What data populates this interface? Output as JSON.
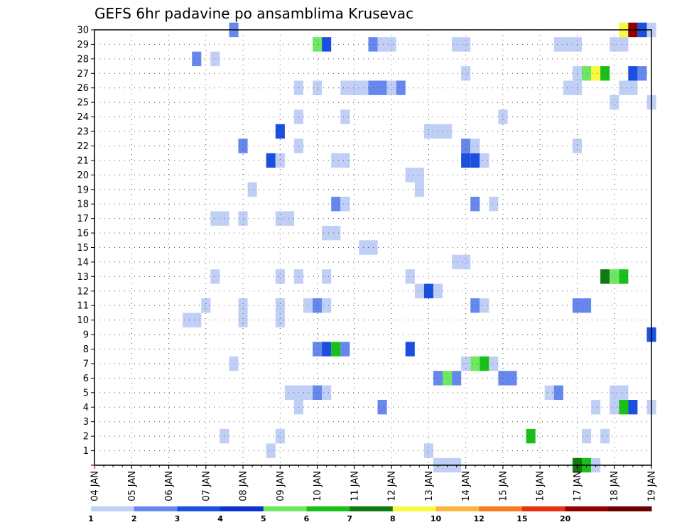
{
  "chart_data": {
    "type": "heatmap",
    "title": "GEFS 6hr padavine po ansamblima Krusevac",
    "x_tick_labels": [
      "04 JAN",
      "05 JAN",
      "06 JAN",
      "07 JAN",
      "08 JAN",
      "09 JAN",
      "10 JAN",
      "11 JAN",
      "12 JAN",
      "13 JAN",
      "14 JAN",
      "15 JAN",
      "16 JAN",
      "17 JAN",
      "18 JAN",
      "19 JAN"
    ],
    "y_tick_labels": [
      "1",
      "2",
      "3",
      "4",
      "5",
      "6",
      "7",
      "8",
      "9",
      "10",
      "11",
      "12",
      "13",
      "14",
      "15",
      "16",
      "17",
      "18",
      "19",
      "20",
      "21",
      "22",
      "23",
      "24",
      "25",
      "26",
      "27",
      "28",
      "29",
      "30"
    ],
    "xlim": [
      0,
      15
    ],
    "ylim": [
      0,
      30
    ],
    "grid": true,
    "legend": {
      "placement": "bottom",
      "labels": [
        "1",
        "2",
        "3",
        "4",
        "5",
        "6",
        "7",
        "8",
        "10",
        "12",
        "15",
        "20"
      ],
      "colors": [
        "#c0cff5",
        "#6688ee",
        "#1a4fe0",
        "#0c33d0",
        "#6ee860",
        "#18c018",
        "#107a10",
        "#f8f840",
        "#fcb640",
        "#fa7a20",
        "#e63010",
        "#900000",
        "#6a0000"
      ]
    },
    "cells": [
      [
        9.25,
        0,
        0
      ],
      [
        9.5,
        0,
        0
      ],
      [
        9.75,
        0,
        0
      ],
      [
        13,
        0,
        6
      ],
      [
        13.25,
        0,
        5
      ],
      [
        13.5,
        0,
        0
      ],
      [
        4.75,
        1,
        0
      ],
      [
        9,
        1,
        0
      ],
      [
        3.5,
        2,
        0
      ],
      [
        5,
        2,
        0
      ],
      [
        11.75,
        2,
        5
      ],
      [
        13.25,
        2,
        0
      ],
      [
        13.75,
        2,
        0
      ],
      [
        5.5,
        4,
        0
      ],
      [
        7.75,
        4,
        1
      ],
      [
        13.5,
        4,
        0
      ],
      [
        14,
        4,
        0
      ],
      [
        14.25,
        4,
        5
      ],
      [
        14.5,
        4,
        2
      ],
      [
        15,
        4,
        0
      ],
      [
        5.25,
        5,
        0
      ],
      [
        5.5,
        5,
        0
      ],
      [
        5.75,
        5,
        0
      ],
      [
        6,
        5,
        1
      ],
      [
        6.25,
        5,
        0
      ],
      [
        12.25,
        5,
        0
      ],
      [
        12.5,
        5,
        1
      ],
      [
        14,
        5,
        0
      ],
      [
        14.25,
        5,
        0
      ],
      [
        9.25,
        6,
        1
      ],
      [
        9.5,
        6,
        4
      ],
      [
        9.75,
        6,
        1
      ],
      [
        11,
        6,
        1
      ],
      [
        11.25,
        6,
        1
      ],
      [
        3.75,
        7,
        0
      ],
      [
        10,
        7,
        0
      ],
      [
        10.25,
        7,
        4
      ],
      [
        10.5,
        7,
        5
      ],
      [
        10.75,
        7,
        0
      ],
      [
        6,
        8,
        1
      ],
      [
        6.25,
        8,
        2
      ],
      [
        6.5,
        8,
        5
      ],
      [
        6.75,
        8,
        1
      ],
      [
        8.5,
        8,
        2
      ],
      [
        15,
        9,
        2
      ],
      [
        2.5,
        10,
        0
      ],
      [
        2.75,
        10,
        0
      ],
      [
        4,
        10,
        0
      ],
      [
        5,
        10,
        0
      ],
      [
        3,
        11,
        0
      ],
      [
        4,
        11,
        0
      ],
      [
        5,
        11,
        0
      ],
      [
        5.75,
        11,
        0
      ],
      [
        6,
        11,
        1
      ],
      [
        6.25,
        11,
        0
      ],
      [
        10.25,
        11,
        1
      ],
      [
        10.5,
        11,
        0
      ],
      [
        13,
        11,
        1
      ],
      [
        13.25,
        11,
        1
      ],
      [
        8.75,
        12,
        0
      ],
      [
        9,
        12,
        2
      ],
      [
        9.25,
        12,
        0
      ],
      [
        3.25,
        13,
        0
      ],
      [
        5,
        13,
        0
      ],
      [
        5.5,
        13,
        0
      ],
      [
        6.25,
        13,
        0
      ],
      [
        8.5,
        13,
        0
      ],
      [
        13.75,
        13,
        6
      ],
      [
        14,
        13,
        4
      ],
      [
        14.25,
        13,
        5
      ],
      [
        9.75,
        14,
        0
      ],
      [
        10,
        14,
        0
      ],
      [
        7.25,
        15,
        0
      ],
      [
        7.5,
        15,
        0
      ],
      [
        6.25,
        16,
        0
      ],
      [
        6.5,
        16,
        0
      ],
      [
        3.25,
        17,
        0
      ],
      [
        3.5,
        17,
        0
      ],
      [
        4,
        17,
        0
      ],
      [
        5,
        17,
        0
      ],
      [
        5.25,
        17,
        0
      ],
      [
        6.5,
        18,
        1
      ],
      [
        6.75,
        18,
        0
      ],
      [
        10.25,
        18,
        1
      ],
      [
        10.75,
        18,
        0
      ],
      [
        4.25,
        19,
        0
      ],
      [
        8.75,
        19,
        0
      ],
      [
        8.5,
        20,
        0
      ],
      [
        8.75,
        20,
        0
      ],
      [
        4.75,
        21,
        2
      ],
      [
        5,
        21,
        0
      ],
      [
        6.5,
        21,
        0
      ],
      [
        6.75,
        21,
        0
      ],
      [
        10,
        21,
        2
      ],
      [
        10.25,
        21,
        2
      ],
      [
        10.5,
        21,
        0
      ],
      [
        4,
        22,
        1
      ],
      [
        5.5,
        22,
        0
      ],
      [
        10,
        22,
        1
      ],
      [
        10.25,
        22,
        0
      ],
      [
        13,
        22,
        0
      ],
      [
        5,
        23,
        2
      ],
      [
        9,
        23,
        0
      ],
      [
        9.25,
        23,
        0
      ],
      [
        9.5,
        23,
        0
      ],
      [
        5.5,
        24,
        0
      ],
      [
        6.75,
        24,
        0
      ],
      [
        11,
        24,
        0
      ],
      [
        14,
        25,
        0
      ],
      [
        15,
        25,
        0
      ],
      [
        5.5,
        26,
        0
      ],
      [
        6,
        26,
        0
      ],
      [
        6.75,
        26,
        0
      ],
      [
        7,
        26,
        0
      ],
      [
        7.25,
        26,
        0
      ],
      [
        7.5,
        26,
        1
      ],
      [
        7.75,
        26,
        1
      ],
      [
        8,
        26,
        0
      ],
      [
        8.25,
        26,
        1
      ],
      [
        12.75,
        26,
        0
      ],
      [
        13,
        26,
        0
      ],
      [
        14.25,
        26,
        0
      ],
      [
        14.5,
        26,
        0
      ],
      [
        10,
        27,
        0
      ],
      [
        13,
        27,
        0
      ],
      [
        13.25,
        27,
        4
      ],
      [
        13.5,
        27,
        7
      ],
      [
        13.75,
        27,
        5
      ],
      [
        14.5,
        27,
        2
      ],
      [
        14.75,
        27,
        1
      ],
      [
        2.75,
        28,
        1
      ],
      [
        3.25,
        28,
        0
      ],
      [
        6,
        29,
        4
      ],
      [
        6.25,
        29,
        2
      ],
      [
        7.5,
        29,
        1
      ],
      [
        7.75,
        29,
        0
      ],
      [
        8,
        29,
        0
      ],
      [
        9.75,
        29,
        0
      ],
      [
        10,
        29,
        0
      ],
      [
        12.5,
        29,
        0
      ],
      [
        12.75,
        29,
        0
      ],
      [
        13,
        29,
        0
      ],
      [
        14,
        29,
        0
      ],
      [
        14.25,
        29,
        0
      ],
      [
        3.75,
        30,
        1
      ],
      [
        14.25,
        30,
        7
      ],
      [
        14.5,
        30,
        11
      ],
      [
        14.75,
        30,
        2
      ],
      [
        15,
        30,
        0
      ]
    ]
  }
}
